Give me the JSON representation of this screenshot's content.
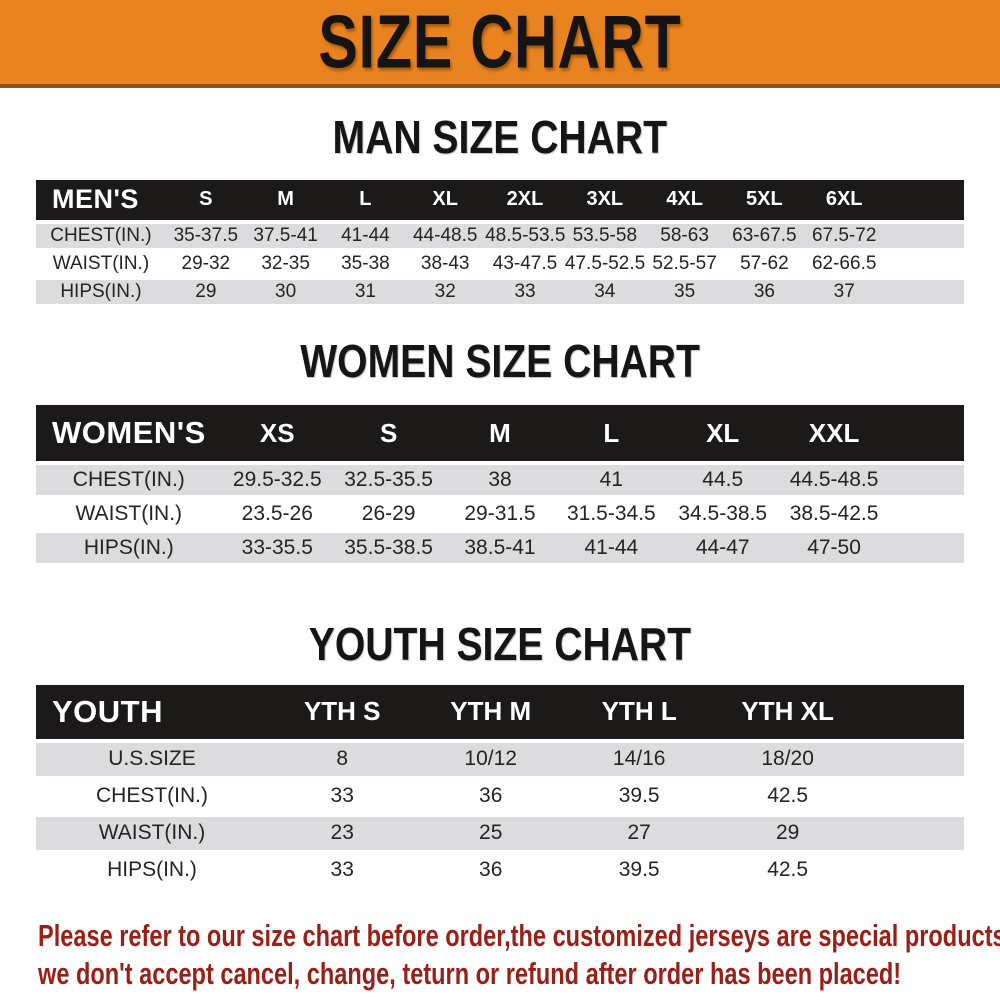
{
  "banner": {
    "title": "SIZE CHART",
    "background_color": "#e8831f",
    "text_color": "#161412"
  },
  "sections": [
    {
      "title": "MAN SIZE CHART",
      "header": {
        "label": "MEN'S",
        "sizes": [
          "S",
          "M",
          "L",
          "XL",
          "2XL",
          "3XL",
          "4XL",
          "5XL",
          "6XL"
        ]
      },
      "rows": [
        {
          "label": "CHEST(IN.)",
          "values": [
            "35-37.5",
            "37.5-41",
            "41-44",
            "44-48.5",
            "48.5-53.5",
            "53.5-58",
            "58-63",
            "63-67.5",
            "67.5-72"
          ]
        },
        {
          "label": "WAIST(IN.)",
          "values": [
            "29-32",
            "32-35",
            "35-38",
            "38-43",
            "43-47.5",
            "47.5-52.5",
            "52.5-57",
            "57-62",
            "62-66.5"
          ]
        },
        {
          "label": "HIPS(IN.)",
          "values": [
            "29",
            "30",
            "31",
            "32",
            "33",
            "34",
            "35",
            "36",
            "37"
          ]
        }
      ]
    },
    {
      "title": "WOMEN SIZE CHART",
      "header": {
        "label": "WOMEN'S",
        "sizes": [
          "XS",
          "S",
          "M",
          "L",
          "XL",
          "XXL"
        ]
      },
      "rows": [
        {
          "label": "CHEST(IN.)",
          "values": [
            "29.5-32.5",
            "32.5-35.5",
            "38",
            "41",
            "44.5",
            "44.5-48.5"
          ]
        },
        {
          "label": "WAIST(IN.)",
          "values": [
            "23.5-26",
            "26-29",
            "29-31.5",
            "31.5-34.5",
            "34.5-38.5",
            "38.5-42.5"
          ]
        },
        {
          "label": "HIPS(IN.)",
          "values": [
            "33-35.5",
            "35.5-38.5",
            "38.5-41",
            "41-44",
            "44-47",
            "47-50"
          ]
        }
      ]
    },
    {
      "title": "YOUTH SIZE CHART",
      "header": {
        "label": "YOUTH",
        "sizes": [
          "YTH S",
          "YTH M",
          "YTH L",
          "YTH XL"
        ]
      },
      "rows": [
        {
          "label": "U.S.SIZE",
          "values": [
            "8",
            "10/12",
            "14/16",
            "18/20"
          ]
        },
        {
          "label": "CHEST(IN.)",
          "values": [
            "33",
            "36",
            "39.5",
            "42.5"
          ]
        },
        {
          "label": "WAIST(IN.)",
          "values": [
            "23",
            "25",
            "27",
            "29"
          ]
        },
        {
          "label": "HIPS(IN.)",
          "values": [
            "33",
            "36",
            "39.5",
            "42.5"
          ]
        }
      ]
    }
  ],
  "disclaimer": {
    "line1": "Please refer to our size chart before order,the customized jerseys are special products,",
    "line2": "we don't accept cancel, change, teturn or refund after order has been placed!",
    "color": "#9a1f17"
  },
  "colors": {
    "banner_orange": "#e8831f",
    "header_bar_black": "#1b1a19",
    "row_gray": "#dcdcdf",
    "disclaimer_red": "#9a1f17"
  }
}
